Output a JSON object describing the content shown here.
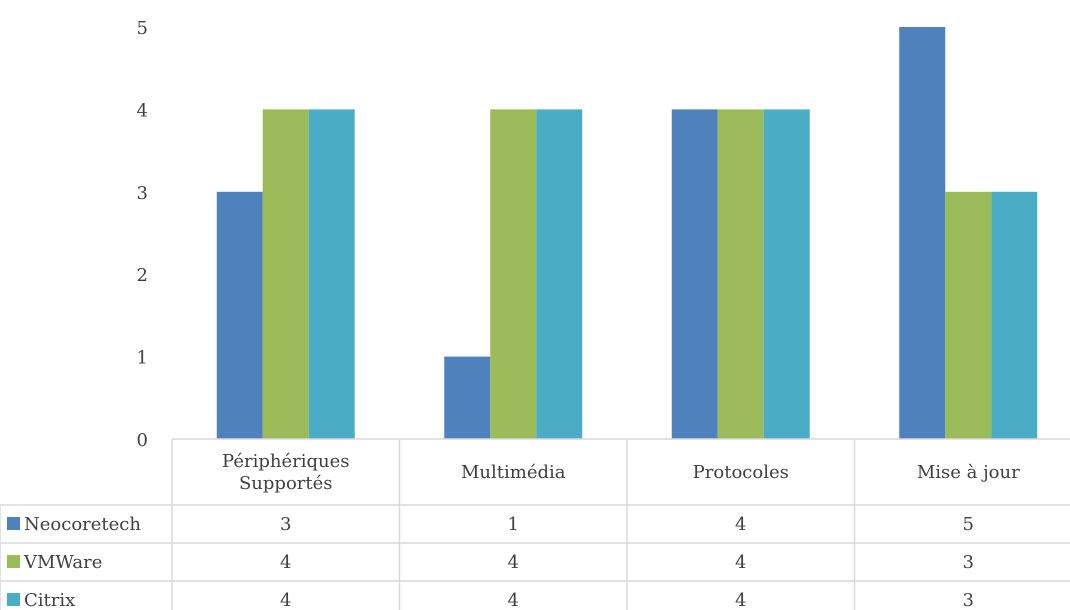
{
  "chart_data": {
    "type": "bar",
    "categories": [
      [
        "Périphériques",
        "Supportés"
      ],
      [
        "Multimédia"
      ],
      [
        "Protocoles"
      ],
      [
        "Mise à jour"
      ]
    ],
    "series": [
      {
        "name": "Neocoretech",
        "values": [
          3,
          1,
          4,
          5
        ]
      },
      {
        "name": "VMWare",
        "values": [
          4,
          4,
          4,
          3
        ]
      },
      {
        "name": "Citrix",
        "values": [
          4,
          4,
          4,
          3
        ]
      }
    ],
    "y_ticks": [
      "0",
      "1",
      "2",
      "3",
      "4",
      "5"
    ],
    "ylim": [
      0,
      5
    ],
    "grid": false,
    "legend": "data-table",
    "title": "",
    "xlabel": "",
    "ylabel": ""
  },
  "colors": {
    "series": [
      "#4F81BD",
      "#9BBB59",
      "#4BACC6"
    ],
    "axis": "#D9D9D9",
    "text": "#404040"
  }
}
